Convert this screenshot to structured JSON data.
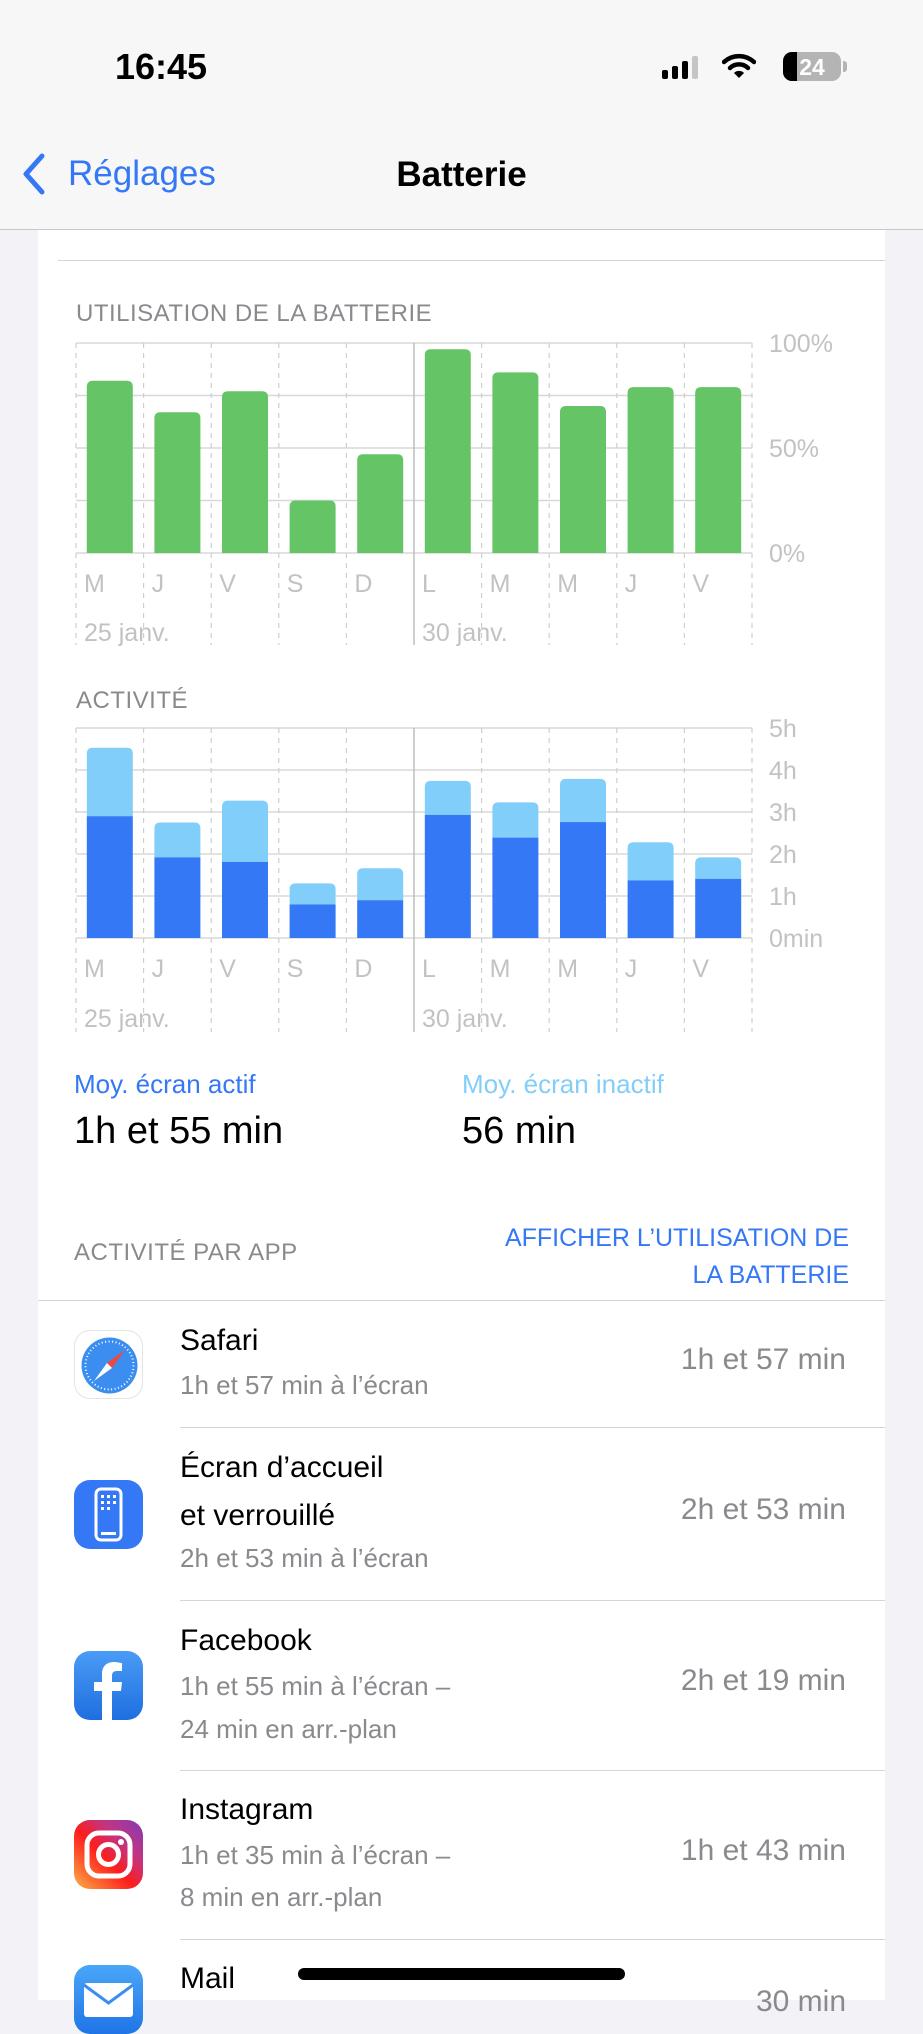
{
  "status_bar": {
    "time": "16:45",
    "battery_level": "24",
    "icons": [
      "cellular-signal-icon",
      "wifi-icon",
      "battery-icon"
    ]
  },
  "nav": {
    "back_label": "Réglages",
    "title": "Batterie"
  },
  "colors": {
    "accent": "#3478f6",
    "battery_bar": "#65c466",
    "screen_on": "#3478f6",
    "screen_off": "#81cefa"
  },
  "battery_chart": {
    "title": "UTILISATION DE LA BATTERIE"
  },
  "activity_chart": {
    "title": "ACTIVITÉ"
  },
  "chart_data": [
    {
      "type": "bar",
      "title": "UTILISATION DE LA BATTERIE",
      "categories": [
        "M",
        "J",
        "V",
        "S",
        "D",
        "L",
        "M",
        "M",
        "J",
        "V"
      ],
      "date_labels": [
        "25 janv.",
        "30 janv."
      ],
      "values": [
        82,
        67,
        77,
        25,
        47,
        97,
        86,
        70,
        79,
        79
      ],
      "yticks": [
        "0%",
        "50%",
        "100%"
      ],
      "ylim": [
        0,
        100
      ],
      "unit": "%",
      "grid": true
    },
    {
      "type": "bar",
      "stacked": true,
      "title": "ACTIVITÉ",
      "categories": [
        "M",
        "J",
        "V",
        "S",
        "D",
        "L",
        "M",
        "M",
        "J",
        "V"
      ],
      "date_labels": [
        "25 janv.",
        "30 janv."
      ],
      "series": [
        {
          "name": "Moy. écran actif",
          "values": [
            2.9,
            1.92,
            1.81,
            0.8,
            0.9,
            2.93,
            2.39,
            2.76,
            1.37,
            1.41
          ]
        },
        {
          "name": "Moy. écran inactif",
          "values": [
            1.63,
            0.83,
            1.46,
            0.5,
            0.76,
            0.81,
            0.84,
            1.03,
            0.91,
            0.51
          ]
        }
      ],
      "yticks": [
        "0min",
        "1h",
        "2h",
        "3h",
        "4h",
        "5h"
      ],
      "ylim": [
        0,
        5
      ],
      "unit": "h",
      "grid": true
    }
  ],
  "averages": {
    "active_label": "Moy. écran actif",
    "active_value": "1h et 55 min",
    "inactive_label": "Moy. écran inactif",
    "inactive_value": "56 min"
  },
  "apps_section": {
    "title": "ACTIVITÉ PAR APP",
    "link_line1": "AFFICHER L’UTILISATION DE",
    "link_line2": "LA BATTERIE"
  },
  "apps": [
    {
      "name": "Safari",
      "sub": [
        "1h et 57 min à l’écran"
      ],
      "value": "1h et 57 min",
      "icon": "safari-icon"
    },
    {
      "name": "Écran d’accueil",
      "name2": "et verrouillé",
      "sub": [
        "2h et 53 min à l’écran"
      ],
      "value": "2h et 53 min",
      "icon": "home-lock-screen-icon"
    },
    {
      "name": "Facebook",
      "sub": [
        "1h et 55 min à l’écran –",
        "24 min en arr.-plan"
      ],
      "value": "2h et 19 min",
      "icon": "facebook-icon"
    },
    {
      "name": "Instagram",
      "sub": [
        "1h et 35 min à l’écran –",
        "8 min en arr.-plan"
      ],
      "value": "1h et 43 min",
      "icon": "instagram-icon"
    },
    {
      "name": "Mail",
      "sub": [],
      "value": "30 min",
      "icon": "mail-icon"
    }
  ]
}
